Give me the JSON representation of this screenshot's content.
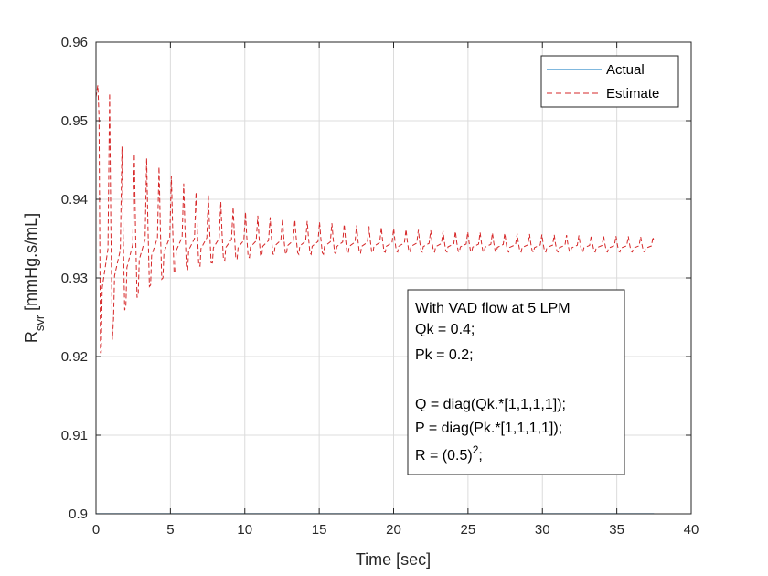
{
  "chart_data": {
    "type": "line",
    "xlabel": "Time [sec]",
    "ylabel_main": "R",
    "ylabel_sub": "svr",
    "ylabel_unit": " [mmHg.s/mL]",
    "xlim": [
      0,
      40
    ],
    "ylim": [
      0.9,
      0.96
    ],
    "grid": true,
    "x_ticks": [
      "0",
      "5",
      "10",
      "15",
      "20",
      "25",
      "30",
      "35",
      "40"
    ],
    "y_ticks": [
      "0.9",
      "0.91",
      "0.92",
      "0.93",
      "0.94",
      "0.95",
      "0.96"
    ],
    "legend_position": "top-right",
    "series": [
      {
        "name": "Actual",
        "style": "solid",
        "color": "#0072BD",
        "x": [
          0,
          37.5
        ],
        "y": [
          0.9,
          0.9
        ]
      },
      {
        "name": "Estimate",
        "style": "dashed",
        "color": "#D62728",
        "start_x": 0,
        "start_y": 0.953,
        "oscillation_period": 0.83,
        "end_x": 37.5,
        "cycles": [
          {
            "t": 0.4,
            "min": 0.9205,
            "max": 0.9535
          },
          {
            "t": 1.0,
            "min": 0.9245,
            "max": 0.947
          },
          {
            "t": 1.6,
            "min": 0.9255,
            "max": 0.946
          },
          {
            "t": 2.4,
            "min": 0.9275,
            "max": 0.9455
          },
          {
            "t": 3.2,
            "min": 0.9285,
            "max": 0.945
          },
          {
            "t": 4.0,
            "min": 0.9295,
            "max": 0.9435
          },
          {
            "t": 5.0,
            "min": 0.9305,
            "max": 0.9425
          },
          {
            "t": 6.0,
            "min": 0.931,
            "max": 0.941
          },
          {
            "t": 7.0,
            "min": 0.9315,
            "max": 0.9405
          },
          {
            "t": 8.0,
            "min": 0.932,
            "max": 0.9395
          },
          {
            "t": 10.0,
            "min": 0.9325,
            "max": 0.938
          },
          {
            "t": 12.0,
            "min": 0.933,
            "max": 0.9375
          },
          {
            "t": 15.0,
            "min": 0.933,
            "max": 0.937
          },
          {
            "t": 20.0,
            "min": 0.9333,
            "max": 0.9362
          },
          {
            "t": 25.0,
            "min": 0.9333,
            "max": 0.9358
          },
          {
            "t": 30.0,
            "min": 0.9333,
            "max": 0.9355
          },
          {
            "t": 37.5,
            "min": 0.9333,
            "max": 0.9352
          }
        ]
      }
    ],
    "annotation": {
      "lines": [
        "With VAD flow at 5 LPM",
        "Qk = 0.4;",
        "Pk = 0.2;",
        "",
        "Q = diag(Qk.*[1,1,1,1]);",
        "P = diag(Pk.*[1,1,1,1]);"
      ],
      "last_line_base": "R = (0.5)",
      "last_line_sup": "2",
      "last_line_end": ";"
    }
  }
}
